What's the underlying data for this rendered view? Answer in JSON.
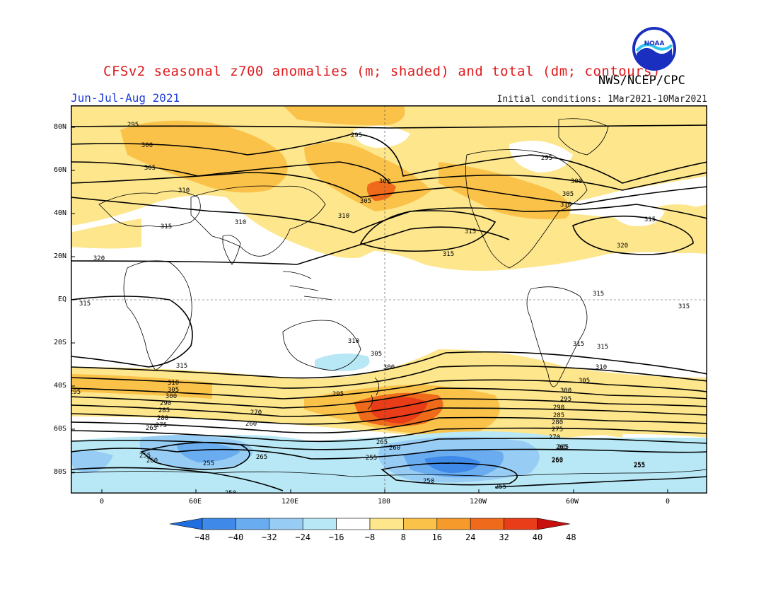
{
  "header": {
    "title": "CFSv2 seasonal z700 anomalies (m; shaded) and total (dm; contours)",
    "agency": "NWS/NCEP/CPC",
    "logo_text": "NOAA",
    "season": "Jun-Jul-Aug 2021",
    "initial_conditions": "Initial conditions: 1Mar2021-10Mar2021"
  },
  "map": {
    "lat_labels": [
      "80N",
      "60N",
      "40N",
      "20N",
      "EQ",
      "20S",
      "40S",
      "60S",
      "80S"
    ],
    "lon_labels": [
      "0",
      "60E",
      "120E",
      "180",
      "120W",
      "60W",
      "0"
    ],
    "contour_labels": [
      "295",
      "295",
      "300",
      "305",
      "310",
      "310",
      "315",
      "320",
      "300",
      "305",
      "310",
      "300",
      "295",
      "305",
      "310",
      "315",
      "315",
      "315",
      "315",
      "315",
      "320",
      "315",
      "315",
      "315",
      "310",
      "305",
      "300",
      "295",
      "310",
      "305",
      "300",
      "290",
      "285",
      "280",
      "275",
      "270",
      "265",
      "260",
      "265",
      "260",
      "255",
      "265",
      "255",
      "260",
      "255",
      "250",
      "255",
      "260",
      "265",
      "255",
      "250",
      "315",
      "310",
      "305",
      "300",
      "295",
      "290",
      "285",
      "280",
      "275",
      "270",
      "265",
      "260",
      "255",
      "295",
      "290",
      "285",
      "280",
      "275",
      "270",
      "265",
      "260",
      "255",
      "250"
    ],
    "lakes_label": ""
  },
  "colorbar": {
    "ticks": [
      "-48",
      "-40",
      "-32",
      "-24",
      "-16",
      "-8",
      "8",
      "16",
      "24",
      "32",
      "40",
      "48"
    ],
    "colors": {
      "blue_strong": "#1f6fe0",
      "blue_mid": "#3f8ae8",
      "blue_light": "#6aacf0",
      "blue_pale": "#97cdf5",
      "cyan_pale": "#b8e7f5",
      "white": "#ffffff",
      "yellow_pale": "#fde68c",
      "orange_light": "#fbc24a",
      "orange": "#f59a2b",
      "orange_dark": "#ef6a1b",
      "red": "#e83d18",
      "red_dark": "#c9100f"
    }
  }
}
